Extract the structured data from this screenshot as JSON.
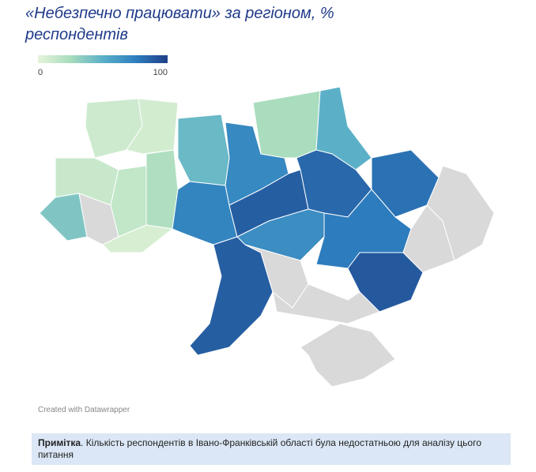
{
  "title": "«Небезпечно працювати» за регіоном, % респондентів",
  "legend": {
    "min": 0,
    "max": 100,
    "colors": [
      "#e6f4d9",
      "#a8dcbd",
      "#5bb0c8",
      "#2e7fbf",
      "#1f3f88"
    ]
  },
  "no_data_color": "#d9d9d9",
  "regions": [
    10,
    8,
    12,
    15,
    22,
    38,
    null,
    6,
    45,
    70,
    24,
    50,
    72,
    88,
    84,
    80,
    68,
    76,
    88,
    90,
    null,
    null,
    null,
    null,
    null
  ],
  "credit": "Created with Datawrapper",
  "note": {
    "label": "Примітка",
    "text": ". Кількість респондентів в Івано-Франківській області була недостатньою для аналізу цього питання"
  }
}
